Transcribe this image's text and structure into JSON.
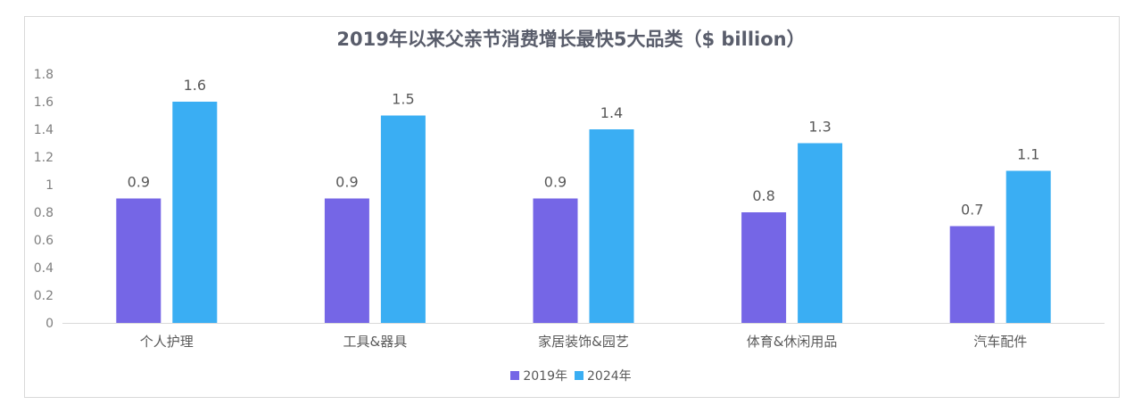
{
  "chart_data": {
    "type": "bar",
    "title": "2019年以来父亲节消费增长最快5大品类（$ billion）",
    "categories": [
      "个人护理",
      "工具&器具",
      "家居装饰&园艺",
      "体育&休闲用品",
      "汽车配件"
    ],
    "series": [
      {
        "name": "2019年",
        "values": [
          0.9,
          0.9,
          0.9,
          0.8,
          0.7
        ],
        "color": "#7566e6"
      },
      {
        "name": "2024年",
        "values": [
          1.6,
          1.5,
          1.4,
          1.3,
          1.1
        ],
        "color": "#3aaef3"
      }
    ],
    "yticks": [
      "0",
      "0.2",
      "0.4",
      "0.6",
      "0.8",
      "1",
      "1.2",
      "1.4",
      "1.6",
      "1.8"
    ],
    "ylim": [
      0,
      1.8
    ],
    "grid": false,
    "legend_position": "bottom"
  }
}
